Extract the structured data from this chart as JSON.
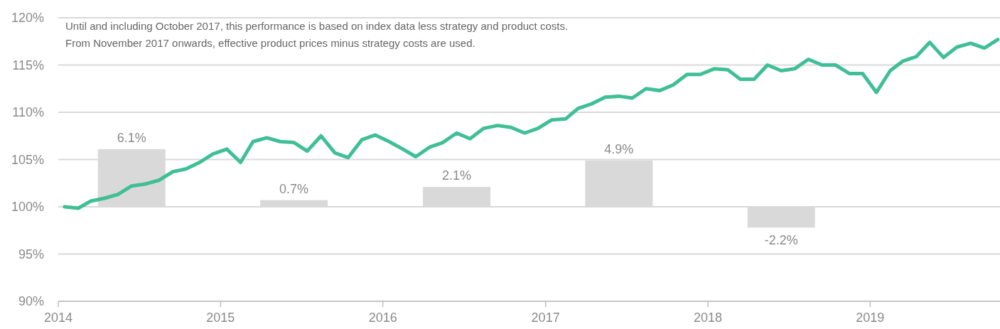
{
  "chart_data": {
    "type": "line",
    "annotations": [
      "Until and including October 2017, this performance is based on index data less strategy and product costs.",
      "From November 2017 onwards, effective product prices minus strategy costs are used."
    ],
    "xlim": [
      "2014-01-01",
      "2019-10-20"
    ],
    "xticks": [
      {
        "value": "2014-01-01",
        "label": "2014"
      },
      {
        "value": "2015-01-01",
        "label": "2015"
      },
      {
        "value": "2016-01-01",
        "label": "2016"
      },
      {
        "value": "2017-01-01",
        "label": "2017"
      },
      {
        "value": "2018-01-01",
        "label": "2018"
      },
      {
        "value": "2019-01-01",
        "label": "2019"
      }
    ],
    "ylim": [
      90,
      120
    ],
    "yticks": [
      {
        "value": 90,
        "label": "90%"
      },
      {
        "value": 95,
        "label": "95%"
      },
      {
        "value": 100,
        "label": "100%"
      },
      {
        "value": 105,
        "label": "105%"
      },
      {
        "value": 110,
        "label": "110%"
      },
      {
        "value": 115,
        "label": "115%"
      },
      {
        "value": 120,
        "label": "120%"
      }
    ],
    "grid": "y",
    "series": [
      {
        "type": "bar",
        "color": "#d9d9d9",
        "x": [
          "2014-06-15",
          "2015-06-15",
          "2016-06-15",
          "2017-06-15",
          "2018-06-15"
        ],
        "values": [
          6.1,
          0.7,
          2.1,
          4.9,
          -2.2
        ],
        "base": [
          100,
          100,
          100,
          100,
          100
        ],
        "value_labels": [
          "6.1%",
          "0.7%",
          "2.1%",
          "4.9%",
          "-2.2%"
        ]
      },
      {
        "color": "#40bf96",
        "x": [
          "2014-01-15",
          "2014-02-15",
          "2014-03-15",
          "2014-04-15",
          "2014-05-15",
          "2014-06-15",
          "2014-07-15",
          "2014-08-15",
          "2014-09-15",
          "2014-10-15",
          "2014-11-15",
          "2014-12-15",
          "2015-01-15",
          "2015-02-15",
          "2015-03-15",
          "2015-04-15",
          "2015-05-15",
          "2015-06-15",
          "2015-07-15",
          "2015-08-15",
          "2015-09-15",
          "2015-10-15",
          "2015-11-15",
          "2015-12-15",
          "2016-01-15",
          "2016-02-15",
          "2016-03-15",
          "2016-04-15",
          "2016-05-15",
          "2016-06-15",
          "2016-07-15",
          "2016-08-15",
          "2016-09-15",
          "2016-10-15",
          "2016-11-15",
          "2016-12-15",
          "2017-01-15",
          "2017-02-15",
          "2017-03-15",
          "2017-04-15",
          "2017-05-15",
          "2017-06-15",
          "2017-07-15",
          "2017-08-15",
          "2017-09-15",
          "2017-10-15",
          "2017-11-15",
          "2017-12-15",
          "2018-01-15",
          "2018-02-15",
          "2018-03-15",
          "2018-04-15",
          "2018-05-15",
          "2018-06-15",
          "2018-07-15",
          "2018-08-15",
          "2018-09-15",
          "2018-10-15",
          "2018-11-15",
          "2018-12-15",
          "2019-01-15",
          "2019-02-15",
          "2019-03-15",
          "2019-04-15",
          "2019-05-15",
          "2019-06-15",
          "2019-07-15",
          "2019-08-15",
          "2019-09-15",
          "2019-10-15"
        ],
        "values": [
          100.0,
          99.85,
          100.6,
          100.9,
          101.3,
          102.2,
          102.4,
          102.8,
          103.7,
          104.0,
          104.7,
          105.6,
          106.1,
          104.7,
          106.9,
          107.3,
          106.9,
          106.8,
          105.9,
          107.5,
          105.7,
          105.2,
          107.1,
          107.6,
          106.9,
          106.1,
          105.3,
          106.3,
          106.8,
          107.8,
          107.2,
          108.3,
          108.6,
          108.4,
          107.8,
          108.3,
          109.2,
          109.3,
          110.4,
          110.9,
          111.6,
          111.7,
          111.5,
          112.5,
          112.3,
          112.9,
          114.0,
          114.0,
          114.6,
          114.5,
          113.5,
          113.5,
          115.0,
          114.4,
          114.6,
          115.6,
          115.0,
          115.0,
          114.1,
          114.1,
          112.1,
          114.4,
          115.4,
          115.9,
          117.4,
          115.8,
          116.9,
          117.3,
          116.8,
          117.7
        ]
      }
    ]
  }
}
